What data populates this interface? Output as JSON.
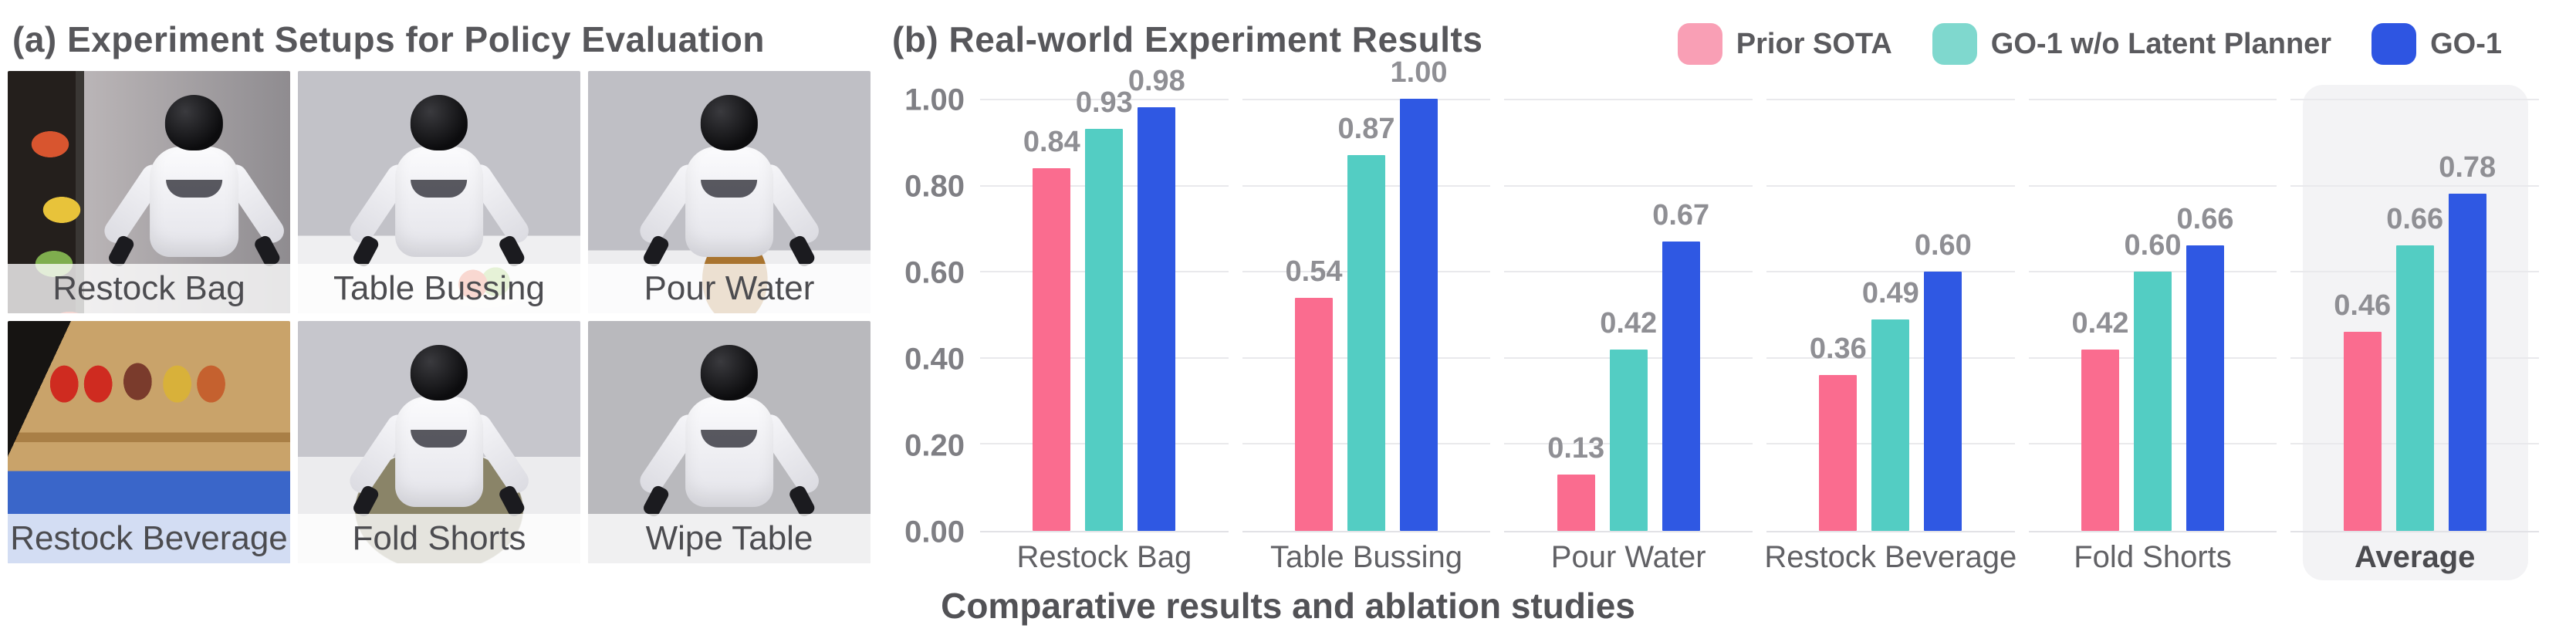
{
  "left_panel": {
    "title": "(a) Experiment Setups for Policy Evaluation",
    "photos": [
      {
        "label": "Restock Bag"
      },
      {
        "label": "Table Bussing"
      },
      {
        "label": "Pour Water"
      },
      {
        "label": "Restock Beverage"
      },
      {
        "label": "Fold Shorts"
      },
      {
        "label": "Wipe Table"
      }
    ]
  },
  "chart": {
    "title": "(b) Real-world Experiment Results",
    "caption": "Comparative results and ablation studies",
    "legend": [
      {
        "label": "Prior SOTA",
        "color": "#F99FB5"
      },
      {
        "label": "GO-1 w/o Latent Planner",
        "color": "#7FD8CE"
      },
      {
        "label": "GO-1",
        "color": "#2E55E2"
      }
    ],
    "y_ticks": [
      "1.00",
      "0.80",
      "0.60",
      "0.40",
      "0.20",
      "0.00"
    ]
  },
  "chart_data": {
    "type": "bar",
    "title": "(b) Real-world Experiment Results",
    "xlabel": "",
    "ylabel": "",
    "ylim": [
      0,
      1.0
    ],
    "grid": true,
    "legend_position": "top-right",
    "categories": [
      "Restock Bag",
      "Table Bussing",
      "Pour Water",
      "Restock Beverage",
      "Fold Shorts",
      "Average"
    ],
    "series": [
      {
        "name": "Prior SOTA",
        "color": "#FA6C8F",
        "values": [
          0.84,
          0.54,
          0.13,
          0.36,
          0.42,
          0.46
        ]
      },
      {
        "name": "GO-1 w/o Latent Planner",
        "color": "#53CDC3",
        "values": [
          0.93,
          0.87,
          0.42,
          0.49,
          0.6,
          0.66
        ]
      },
      {
        "name": "GO-1",
        "color": "#2F58E3",
        "values": [
          0.98,
          1.0,
          0.67,
          0.6,
          0.66,
          0.78
        ]
      }
    ],
    "value_labels": [
      [
        "0.84",
        "0.54",
        "0.13",
        "0.36",
        "0.42",
        "0.46"
      ],
      [
        "0.93",
        "0.87",
        "0.42",
        "0.49",
        "0.60",
        "0.66"
      ],
      [
        "0.98",
        "1.00",
        "0.67",
        "0.60",
        "0.66",
        "0.78"
      ]
    ],
    "highlight_category": "Average"
  }
}
